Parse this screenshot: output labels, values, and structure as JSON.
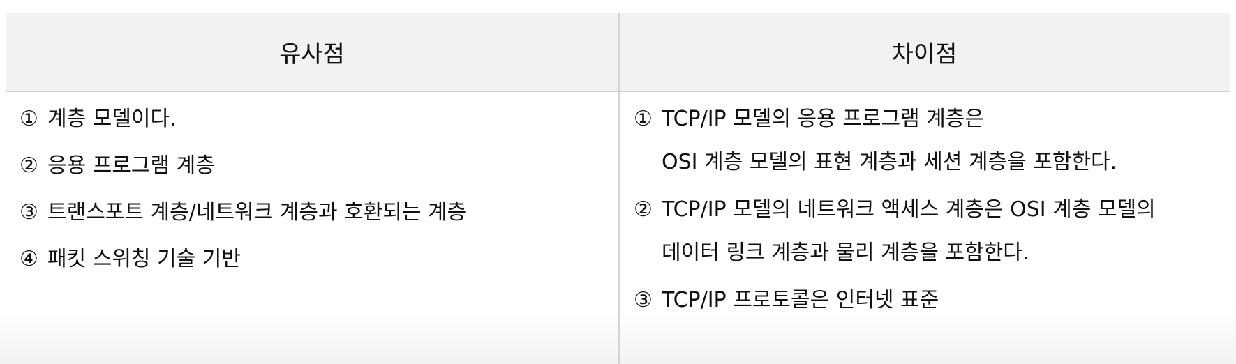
{
  "table": {
    "headers": {
      "left": "유사점",
      "right": "차이점"
    },
    "similarities": [
      {
        "num": "①",
        "text": "계층 모델이다."
      },
      {
        "num": "②",
        "text": "응용 프로그램 계층"
      },
      {
        "num": "③",
        "text": "트랜스포트 계층/네트워크 계층과 호환되는 계층"
      },
      {
        "num": "④",
        "text": "패킷 스위칭 기술 기반"
      }
    ],
    "differences": [
      {
        "num": "①",
        "line1": "TCP/IP 모델의 응용 프로그램 계층은",
        "line2": "OSI 계층 모델의 표현 계층과 세션 계층을 포함한다."
      },
      {
        "num": "②",
        "line1": "TCP/IP 모델의 네트워크 액세스 계층은 OSI 계층 모델의",
        "line2": "데이터 링크 계층과 물리 계층을 포함한다."
      },
      {
        "num": "③",
        "line1": "TCP/IP 프로토콜은 인터넷 표준"
      }
    ]
  }
}
